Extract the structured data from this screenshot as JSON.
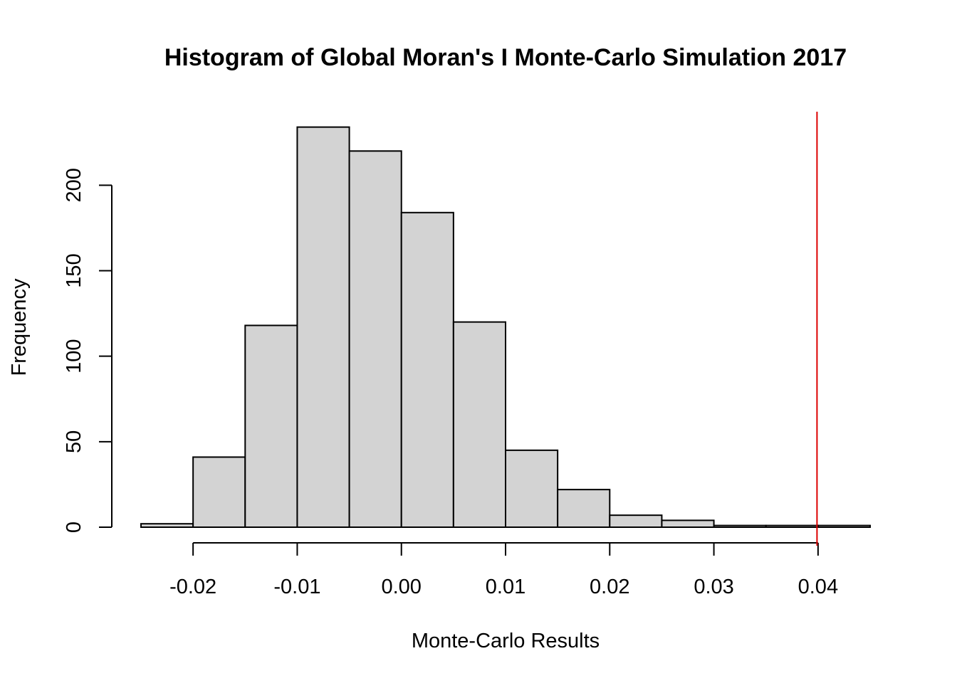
{
  "chart_data": {
    "type": "bar",
    "title": "Histogram of Global Moran's I Monte-Carlo Simulation 2017",
    "xlabel": "Monte-Carlo Results",
    "ylabel": "Frequency",
    "bins": [
      {
        "start": -0.025,
        "end": -0.02,
        "count": 2
      },
      {
        "start": -0.02,
        "end": -0.015,
        "count": 41
      },
      {
        "start": -0.015,
        "end": -0.01,
        "count": 118
      },
      {
        "start": -0.01,
        "end": -0.005,
        "count": 234
      },
      {
        "start": -0.005,
        "end": 0.0,
        "count": 220
      },
      {
        "start": 0.0,
        "end": 0.005,
        "count": 184
      },
      {
        "start": 0.005,
        "end": 0.01,
        "count": 120
      },
      {
        "start": 0.01,
        "end": 0.015,
        "count": 45
      },
      {
        "start": 0.015,
        "end": 0.02,
        "count": 22
      },
      {
        "start": 0.02,
        "end": 0.025,
        "count": 7
      },
      {
        "start": 0.025,
        "end": 0.03,
        "count": 4
      },
      {
        "start": 0.03,
        "end": 0.035,
        "count": 1
      },
      {
        "start": 0.035,
        "end": 0.04,
        "count": 1
      },
      {
        "start": 0.04,
        "end": 0.045,
        "count": 1
      }
    ],
    "xlim": [
      -0.025,
      0.045
    ],
    "ylim": [
      0,
      243
    ],
    "x_ticks": [
      {
        "value": -0.02,
        "label": "-0.02"
      },
      {
        "value": -0.01,
        "label": "-0.01"
      },
      {
        "value": 0.0,
        "label": "0.00"
      },
      {
        "value": 0.01,
        "label": "0.01"
      },
      {
        "value": 0.02,
        "label": "0.02"
      },
      {
        "value": 0.03,
        "label": "0.03"
      },
      {
        "value": 0.04,
        "label": "0.04"
      }
    ],
    "y_ticks": [
      {
        "value": 0,
        "label": "0"
      },
      {
        "value": 50,
        "label": "50"
      },
      {
        "value": 100,
        "label": "100"
      },
      {
        "value": 150,
        "label": "150"
      },
      {
        "value": 200,
        "label": "200"
      }
    ],
    "reference_line": {
      "x": 0.0399,
      "color": "#dd0000"
    },
    "bar_fill": "#d3d3d3",
    "bar_stroke": "#000000",
    "grid": false
  }
}
